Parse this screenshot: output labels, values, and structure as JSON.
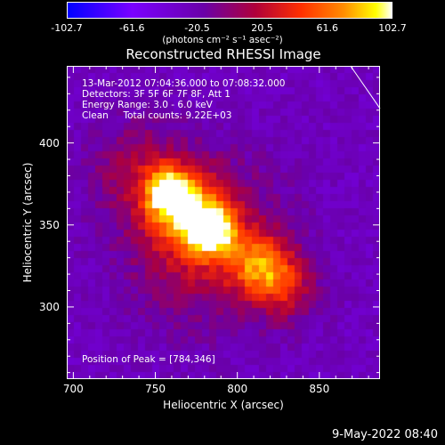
{
  "colorbar": {
    "ticks": [
      "-102.7",
      "-61.6",
      "-20.5",
      "20.5",
      "61.6",
      "102.7"
    ],
    "tick_values": [
      -102.7,
      -61.6,
      -20.5,
      20.5,
      61.6,
      102.7
    ],
    "units": "(photons cm⁻² s⁻¹ asec⁻²)"
  },
  "chart_data": {
    "type": "heatmap",
    "title": "Reconstructed RHESSI Image",
    "xlabel": "Heliocentric X (arcsec)",
    "ylabel": "Heliocentric Y (arcsec)",
    "x_ticks": [
      700,
      750,
      800,
      850
    ],
    "y_ticks": [
      300,
      350,
      400
    ],
    "xlim": [
      696,
      887
    ],
    "ylim": [
      256,
      447
    ],
    "zlim": [
      -102.7,
      102.7
    ],
    "colormap": [
      "#0000ff",
      "#7a00ff",
      "#6a00a8",
      "#b0003a",
      "#ff3000",
      "#ff8c00",
      "#ffff00",
      "#ffffff"
    ],
    "sources": [
      {
        "x": 784,
        "y": 346,
        "amp": 102.7,
        "sigma": 10
      },
      {
        "x": 758,
        "y": 370,
        "amp": 92,
        "sigma": 9
      },
      {
        "x": 768,
        "y": 360,
        "amp": 70,
        "sigma": 16
      },
      {
        "x": 815,
        "y": 325,
        "amp": 72,
        "sigma": 13
      },
      {
        "x": 780,
        "y": 340,
        "amp": 55,
        "sigma": 32
      },
      {
        "x": 740,
        "y": 385,
        "amp": 35,
        "sigma": 20
      },
      {
        "x": 830,
        "y": 310,
        "amp": 40,
        "sigma": 14
      }
    ],
    "annotations": [
      "13-Mar-2012 07:04:36.000 to 07:08:32.000",
      "Detectors: 3F 5F 6F 7F 8F, Att 1",
      "Energy Range: 3.0 - 6.0 keV",
      "Clean     Total counts: 9.22E+03",
      "Position of Peak = [784,346]"
    ],
    "limb_line": [
      [
        869,
        447
      ],
      [
        887,
        421
      ]
    ]
  },
  "info": {
    "line1": "13-Mar-2012 07:04:36.000 to 07:08:32.000",
    "line2": "Detectors: 3F 5F 6F 7F 8F, Att 1",
    "line3": "Energy Range: 3.0 - 6.0 keV",
    "line4": "Clean     Total counts: 9.22E+03",
    "peak": "Position of Peak = [784,346]"
  },
  "footer": "9-May-2022 08:40"
}
